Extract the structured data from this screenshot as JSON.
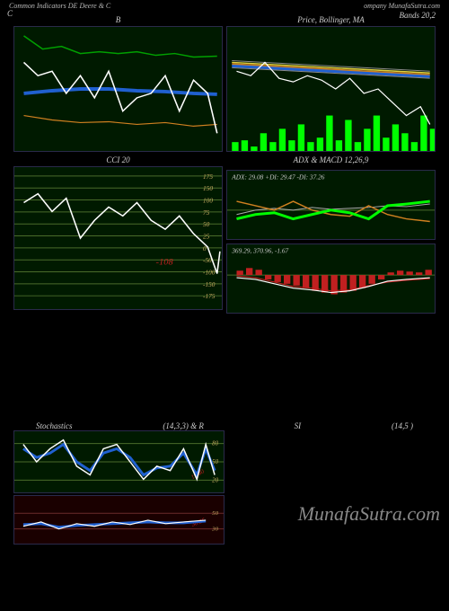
{
  "header": {
    "left": "Common Indicators DE Deere & C",
    "right": "ompany MunafaSutra.com",
    "c_label": "C"
  },
  "panels": {
    "bb": {
      "title": "B"
    },
    "price": {
      "title": "Price, Bollinger, MA"
    },
    "bands": {
      "title": "Bands 20,2"
    },
    "cci": {
      "title": "CCI 20",
      "levels": [
        175,
        150,
        100,
        75,
        50,
        25,
        0,
        -50,
        -100,
        -150,
        -175
      ],
      "current": "-108"
    },
    "adx": {
      "title": "ADX & MACD 12,26,9",
      "label": "ADX: 29.08  +DI: 29.47 -DI: 37.26"
    },
    "macd": {
      "label": "369.29, 370.96, -1.67"
    },
    "stoch": {
      "left_title": "Stochastics",
      "params": "(14,3,3) & R",
      "si": "SI",
      "right_params": "(14,5                         )",
      "levels": [
        80,
        50,
        20
      ],
      "levels2": [
        50,
        30
      ]
    }
  },
  "watermark": "MunafaSutra.com",
  "colors": {
    "bg": "#000000",
    "panel_bg": "#001a00",
    "border": "#2a2a4a",
    "white_line": "#ffffff",
    "blue_line": "#2060d0",
    "green_line": "#00a000",
    "bright_green": "#00ff00",
    "orange_line": "#d08020",
    "red_line": "#c02020",
    "yellow_line": "#e0d040",
    "grid_green": "#4a6b2a",
    "label_gold": "#c4a860",
    "text_gray": "#cccccc"
  },
  "series": {
    "bb_white": [
      10,
      40,
      25,
      55,
      40,
      50,
      55,
      75,
      70,
      55,
      85,
      80,
      100,
      50,
      115,
      95,
      130,
      80,
      145,
      75,
      160,
      55,
      175,
      95,
      190,
      60,
      205,
      75,
      215,
      120
    ],
    "bb_blue": [
      10,
      75,
      40,
      72,
      70,
      70,
      100,
      70,
      130,
      72,
      160,
      73,
      190,
      75,
      215,
      76
    ],
    "bb_green": [
      10,
      10,
      30,
      25,
      50,
      22,
      70,
      30,
      90,
      28,
      110,
      30,
      130,
      28,
      150,
      32,
      170,
      30,
      190,
      34,
      215,
      33
    ],
    "bb_orange": [
      10,
      100,
      40,
      105,
      70,
      108,
      100,
      107,
      130,
      110,
      160,
      108,
      190,
      112,
      215,
      110
    ],
    "price_white": [
      10,
      50,
      25,
      55,
      40,
      40,
      55,
      58,
      70,
      62,
      85,
      55,
      100,
      60,
      115,
      70,
      130,
      58,
      145,
      75,
      160,
      70,
      175,
      85,
      190,
      100,
      205,
      90,
      215,
      110
    ],
    "price_volume": [
      5,
      130,
      15,
      128,
      25,
      135,
      35,
      120,
      45,
      130,
      55,
      115,
      65,
      128,
      75,
      110,
      85,
      130,
      95,
      125,
      105,
      100,
      115,
      128,
      125,
      105,
      135,
      130,
      145,
      115,
      155,
      100,
      165,
      125,
      175,
      110,
      185,
      120,
      195,
      130,
      205,
      100,
      215,
      115
    ],
    "cci_white": [
      10,
      40,
      25,
      30,
      40,
      50,
      55,
      35,
      70,
      80,
      85,
      60,
      100,
      45,
      115,
      55,
      130,
      40,
      145,
      60,
      160,
      70,
      175,
      55,
      190,
      75,
      205,
      90,
      215,
      120,
      218,
      95
    ],
    "adx_green": [
      10,
      55,
      30,
      50,
      50,
      48,
      70,
      55,
      90,
      50,
      110,
      45,
      130,
      48,
      150,
      55,
      170,
      40,
      190,
      38,
      215,
      35
    ],
    "adx_orange": [
      10,
      35,
      30,
      40,
      50,
      45,
      70,
      35,
      90,
      45,
      110,
      50,
      130,
      52,
      150,
      40,
      170,
      50,
      190,
      55,
      215,
      58
    ],
    "adx_white": [
      10,
      50,
      30,
      45,
      50,
      43,
      70,
      45,
      90,
      42,
      110,
      44,
      130,
      43,
      150,
      42,
      170,
      40,
      190,
      41,
      215,
      38
    ],
    "macd_bars_x": [
      10,
      20,
      30,
      40,
      50,
      60,
      70,
      80,
      90,
      100,
      110,
      120,
      130,
      140,
      150,
      160,
      170,
      180,
      190,
      200,
      210
    ],
    "macd_bars_h": [
      5,
      8,
      6,
      -5,
      -8,
      -10,
      -12,
      -15,
      -18,
      -20,
      -22,
      -20,
      -18,
      -15,
      -10,
      -5,
      3,
      5,
      4,
      3,
      6
    ],
    "macd_white": [
      10,
      38,
      30,
      40,
      50,
      45,
      70,
      50,
      90,
      52,
      110,
      55,
      130,
      53,
      150,
      48,
      170,
      42,
      190,
      40,
      215,
      38
    ],
    "macd_red": [
      10,
      36,
      30,
      38,
      50,
      43,
      70,
      48,
      90,
      50,
      110,
      53,
      130,
      52,
      150,
      47,
      170,
      43,
      190,
      41,
      215,
      39
    ],
    "stoch_white": [
      10,
      15,
      25,
      35,
      40,
      20,
      55,
      10,
      70,
      40,
      85,
      50,
      100,
      20,
      115,
      15,
      130,
      35,
      145,
      55,
      160,
      40,
      175,
      45,
      190,
      20,
      205,
      55,
      215,
      15,
      225,
      50
    ],
    "stoch_blue": [
      10,
      20,
      25,
      30,
      40,
      25,
      55,
      15,
      70,
      35,
      85,
      45,
      100,
      25,
      115,
      20,
      130,
      30,
      145,
      50,
      160,
      42,
      175,
      40,
      190,
      25,
      205,
      50,
      215,
      20,
      225,
      45
    ],
    "stoch2_white": [
      10,
      35,
      30,
      30,
      50,
      38,
      70,
      32,
      90,
      35,
      110,
      30,
      130,
      33,
      150,
      28,
      170,
      32,
      190,
      30,
      215,
      28
    ],
    "stoch2_blue": [
      10,
      33,
      30,
      32,
      50,
      36,
      70,
      34,
      90,
      33,
      110,
      32,
      130,
      31,
      150,
      30,
      170,
      31,
      190,
      31,
      215,
      29
    ]
  }
}
